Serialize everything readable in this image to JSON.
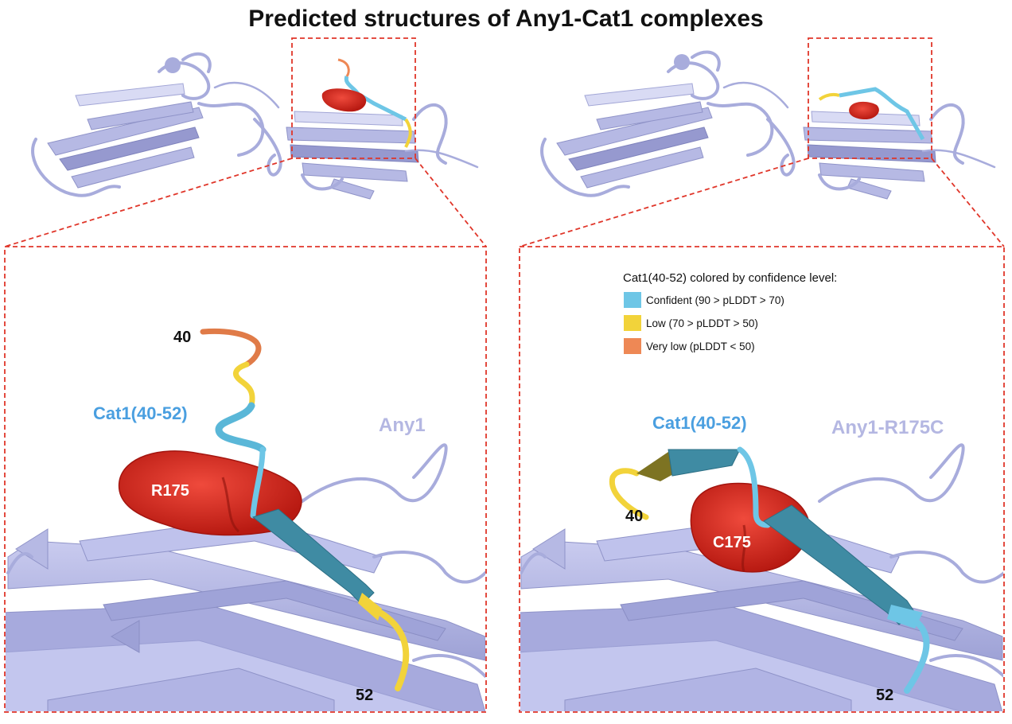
{
  "title": "Predicted structures of Any1-Cat1 complexes",
  "left_panel": {
    "protein_label": "Any1",
    "peptide_label": "Cat1(40-52)",
    "residue_label": "R175",
    "start_label": "40",
    "end_label": "52"
  },
  "right_panel": {
    "protein_label": "Any1-R175C",
    "peptide_label": "Cat1(40-52)",
    "residue_label": "C175",
    "start_label": "40",
    "end_label": "52"
  },
  "legend": {
    "title": "Cat1(40-52) colored by confidence level:",
    "items": [
      {
        "label": "Confident (90 > pLDDT > 70)",
        "color": "#6ec6e6"
      },
      {
        "label": "Low (70 > pLDDT > 50)",
        "color": "#f2d33a"
      },
      {
        "label": "Very low (pLDDT < 50)",
        "color": "#ee8855"
      }
    ]
  },
  "colors": {
    "protein": "#a8acdc",
    "residue_surface": "#d9261c",
    "peptide_label": "#4a9fe0",
    "protein_label": "#b4b7e2",
    "zoom_box": "#e0362a"
  }
}
